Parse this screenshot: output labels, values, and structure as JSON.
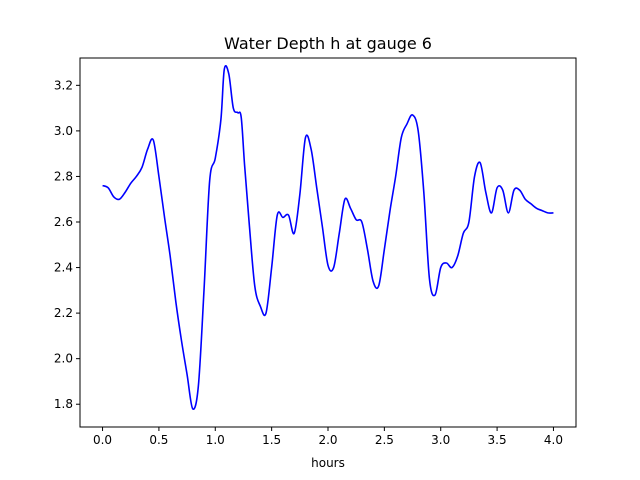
{
  "chart_data": {
    "type": "line",
    "title": "Water Depth h at gauge 6",
    "xlabel": "hours",
    "ylabel": "",
    "xlim": [
      -0.2,
      4.2
    ],
    "ylim": [
      1.7,
      3.32
    ],
    "xticks": [
      0.0,
      0.5,
      1.0,
      1.5,
      2.0,
      2.5,
      3.0,
      3.5,
      4.0
    ],
    "xtick_labels": [
      "0.0",
      "0.5",
      "1.0",
      "1.5",
      "2.0",
      "2.5",
      "3.0",
      "3.5",
      "4.0"
    ],
    "yticks": [
      1.8,
      2.0,
      2.2,
      2.4,
      2.6,
      2.8,
      3.0,
      3.2
    ],
    "ytick_labels": [
      "1.8",
      "2.0",
      "2.2",
      "2.4",
      "2.6",
      "2.8",
      "3.0",
      "3.2"
    ],
    "grid": false,
    "legend": "none",
    "series": [
      {
        "color": "#0000ff",
        "x": [
          0.0,
          0.05,
          0.1,
          0.15,
          0.2,
          0.25,
          0.3,
          0.35,
          0.4,
          0.45,
          0.5,
          0.55,
          0.6,
          0.65,
          0.7,
          0.75,
          0.8,
          0.85,
          0.9,
          0.95,
          1.0,
          1.05,
          1.08,
          1.12,
          1.16,
          1.2,
          1.23,
          1.26,
          1.3,
          1.35,
          1.4,
          1.45,
          1.5,
          1.55,
          1.6,
          1.65,
          1.7,
          1.75,
          1.8,
          1.85,
          1.9,
          1.95,
          2.0,
          2.05,
          2.1,
          2.15,
          2.2,
          2.25,
          2.3,
          2.35,
          2.4,
          2.45,
          2.5,
          2.55,
          2.6,
          2.65,
          2.7,
          2.75,
          2.8,
          2.85,
          2.9,
          2.95,
          3.0,
          3.05,
          3.1,
          3.15,
          3.2,
          3.25,
          3.3,
          3.35,
          3.4,
          3.45,
          3.5,
          3.55,
          3.6,
          3.65,
          3.7,
          3.75,
          3.8,
          3.85,
          3.9,
          3.95,
          4.0
        ],
        "y": [
          2.76,
          2.75,
          2.71,
          2.7,
          2.73,
          2.77,
          2.8,
          2.84,
          2.92,
          2.96,
          2.8,
          2.62,
          2.45,
          2.25,
          2.08,
          1.93,
          1.78,
          1.88,
          2.3,
          2.78,
          2.88,
          3.05,
          3.27,
          3.25,
          3.1,
          3.08,
          3.06,
          2.85,
          2.6,
          2.32,
          2.23,
          2.2,
          2.4,
          2.63,
          2.62,
          2.63,
          2.55,
          2.72,
          2.97,
          2.92,
          2.75,
          2.58,
          2.41,
          2.4,
          2.55,
          2.7,
          2.66,
          2.61,
          2.6,
          2.48,
          2.34,
          2.32,
          2.48,
          2.65,
          2.8,
          2.97,
          3.03,
          3.07,
          3.0,
          2.73,
          2.35,
          2.28,
          2.4,
          2.42,
          2.4,
          2.45,
          2.55,
          2.6,
          2.8,
          2.86,
          2.73,
          2.64,
          2.75,
          2.74,
          2.64,
          2.74,
          2.74,
          2.7,
          2.68,
          2.66,
          2.65,
          2.64,
          2.64
        ]
      }
    ]
  }
}
